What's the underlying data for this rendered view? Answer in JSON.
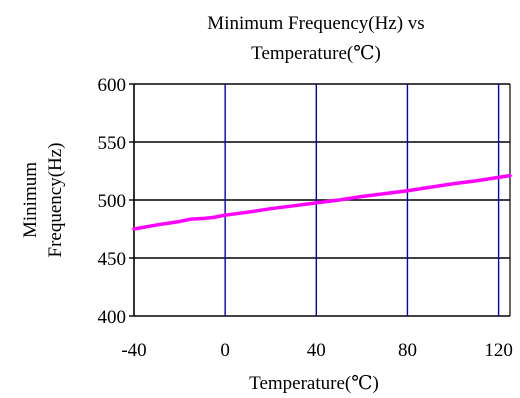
{
  "chart_data": {
    "type": "line",
    "title_lines": [
      "Minimum Frequency(Hz) vs",
      "Temperature(℃)"
    ],
    "xlabel": "Temperature(℃)",
    "ylabel_lines": [
      "Minimum",
      "Frequency(Hz)"
    ],
    "xlim": [
      -40,
      125
    ],
    "ylim": [
      400,
      600
    ],
    "x_ticks": [
      -40,
      0,
      40,
      80,
      120
    ],
    "y_ticks": [
      400,
      450,
      500,
      550,
      600
    ],
    "grid": {
      "horizontal": true,
      "vertical": true
    },
    "colors": {
      "series": "#ff00ff",
      "vertical_grid": "#0000cc",
      "horizontal_grid": "#000000"
    },
    "series": [
      {
        "x": [
          -40,
          -30,
          -20,
          -15,
          -10,
          -5,
          0,
          10,
          20,
          30,
          40,
          50,
          60,
          70,
          80,
          90,
          100,
          110,
          120,
          125
        ],
        "y": [
          475,
          478.5,
          481.5,
          483.5,
          484,
          485,
          487,
          489.5,
          492.5,
          495,
          497.5,
          500,
          503,
          505.5,
          508,
          511,
          514,
          516.5,
          519.5,
          521
        ]
      }
    ]
  }
}
